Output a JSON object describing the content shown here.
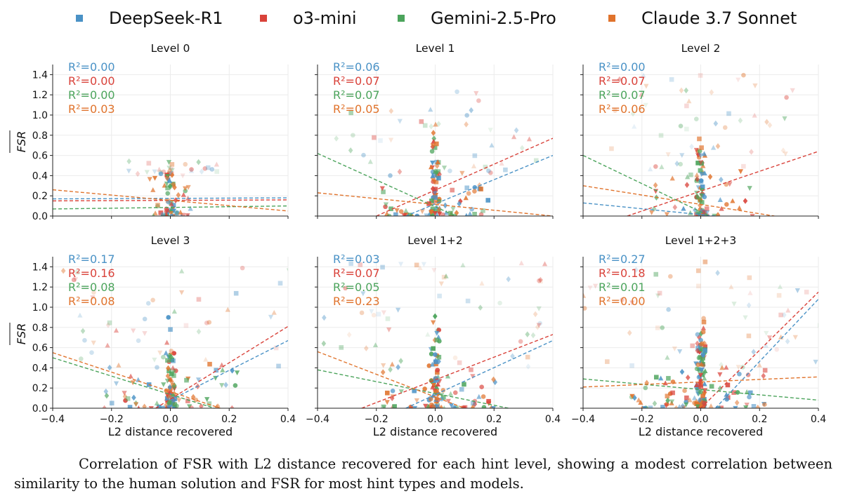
{
  "colors": {
    "DeepSeek-R1": "#4a92c6",
    "o3-mini": "#d9423a",
    "Gemini-2.5-Pro": "#4ca45c",
    "Claude 3.7 Sonnet": "#e0732c"
  },
  "caption": "Correlation of FSR with L2 distance recovered for each hint level, showing a modest correlation between similarity to the human solution and FSR for most hint types and models.",
  "chart_data": {
    "type": "scatter",
    "legend": [
      "DeepSeek-R1",
      "o3-mini",
      "Gemini-2.5-Pro",
      "Claude 3.7 Sonnet"
    ],
    "legend_position": "top",
    "xlabel": "L2 distance recovered",
    "ylabel": "FSR",
    "xlim": [
      -0.4,
      0.4
    ],
    "ylim": [
      0.0,
      1.5
    ],
    "xticks": [
      "−0.4",
      "−0.2",
      "0.0",
      "0.2",
      "0.4"
    ],
    "yticks": [
      "0.0",
      "0.2",
      "0.4",
      "0.6",
      "0.8",
      "1.0",
      "1.2",
      "1.4"
    ],
    "grid": true,
    "panels": [
      {
        "title": "Level 0",
        "r2": [
          {
            "model": "DeepSeek-R1",
            "label": "R²=0.00"
          },
          {
            "model": "o3-mini",
            "label": "R²=0.00"
          },
          {
            "model": "Gemini-2.5-Pro",
            "label": "R²=0.00"
          },
          {
            "model": "Claude 3.7 Sonnet",
            "label": "R²=0.03"
          }
        ],
        "fits": [
          {
            "model": "DeepSeek-R1",
            "x": [
              -0.4,
              0.4
            ],
            "y": [
              0.17,
              0.18
            ]
          },
          {
            "model": "o3-mini",
            "x": [
              -0.4,
              0.4
            ],
            "y": [
              0.15,
              0.16
            ]
          },
          {
            "model": "Gemini-2.5-Pro",
            "x": [
              -0.4,
              0.4
            ],
            "y": [
              0.07,
              0.1
            ]
          },
          {
            "model": "Claude 3.7 Sonnet",
            "x": [
              -0.4,
              0.4
            ],
            "y": [
              0.26,
              0.05
            ]
          }
        ]
      },
      {
        "title": "Level 1",
        "r2": [
          {
            "model": "DeepSeek-R1",
            "label": "R²=0.06"
          },
          {
            "model": "o3-mini",
            "label": "R²=0.07"
          },
          {
            "model": "Gemini-2.5-Pro",
            "label": "R²=0.07"
          },
          {
            "model": "Claude 3.7 Sonnet",
            "label": "R²=0.05"
          }
        ],
        "fits": [
          {
            "model": "DeepSeek-R1",
            "x": [
              -0.1,
              0.4
            ],
            "y": [
              0.0,
              0.6
            ]
          },
          {
            "model": "o3-mini",
            "x": [
              -0.2,
              0.4
            ],
            "y": [
              0.0,
              0.77
            ]
          },
          {
            "model": "Gemini-2.5-Pro",
            "x": [
              -0.4,
              0.07
            ],
            "y": [
              0.62,
              0.0
            ]
          },
          {
            "model": "Claude 3.7 Sonnet",
            "x": [
              -0.4,
              0.4
            ],
            "y": [
              0.23,
              0.0
            ]
          }
        ]
      },
      {
        "title": "Level 2",
        "r2": [
          {
            "model": "DeepSeek-R1",
            "label": "R²=0.00"
          },
          {
            "model": "o3-mini",
            "label": "R²=0.07"
          },
          {
            "model": "Gemini-2.5-Pro",
            "label": "R²=0.07"
          },
          {
            "model": "Claude 3.7 Sonnet",
            "label": "R²=0.06"
          }
        ],
        "fits": [
          {
            "model": "DeepSeek-R1",
            "x": [
              -0.4,
              0.05
            ],
            "y": [
              0.13,
              0.0
            ]
          },
          {
            "model": "o3-mini",
            "x": [
              -0.25,
              0.4
            ],
            "y": [
              0.0,
              0.64
            ]
          },
          {
            "model": "Gemini-2.5-Pro",
            "x": [
              -0.4,
              0.03
            ],
            "y": [
              0.6,
              0.0
            ]
          },
          {
            "model": "Claude 3.7 Sonnet",
            "x": [
              -0.4,
              0.25
            ],
            "y": [
              0.3,
              0.0
            ]
          }
        ]
      },
      {
        "title": "Level 3",
        "r2": [
          {
            "model": "DeepSeek-R1",
            "label": "R²=0.17"
          },
          {
            "model": "o3-mini",
            "label": "R²=0.16"
          },
          {
            "model": "Gemini-2.5-Pro",
            "label": "R²=0.08"
          },
          {
            "model": "Claude 3.7 Sonnet",
            "label": "R²=0.08"
          }
        ],
        "fits": [
          {
            "model": "DeepSeek-R1",
            "x": [
              0.0,
              0.4
            ],
            "y": [
              0.08,
              0.67
            ]
          },
          {
            "model": "o3-mini",
            "x": [
              -0.05,
              0.4
            ],
            "y": [
              0.0,
              0.81
            ]
          },
          {
            "model": "Gemini-2.5-Pro",
            "x": [
              -0.4,
              0.15
            ],
            "y": [
              0.5,
              0.0
            ]
          },
          {
            "model": "Claude 3.7 Sonnet",
            "x": [
              -0.4,
              0.17
            ],
            "y": [
              0.55,
              0.0
            ]
          }
        ]
      },
      {
        "title": "Level 1+2",
        "r2": [
          {
            "model": "DeepSeek-R1",
            "label": "R²=0.03"
          },
          {
            "model": "o3-mini",
            "label": "R²=0.07"
          },
          {
            "model": "Gemini-2.5-Pro",
            "label": "R²=0.05"
          },
          {
            "model": "Claude 3.7 Sonnet",
            "label": "R²=0.23"
          }
        ],
        "fits": [
          {
            "model": "DeepSeek-R1",
            "x": [
              -0.1,
              0.4
            ],
            "y": [
              0.0,
              0.67
            ]
          },
          {
            "model": "o3-mini",
            "x": [
              -0.25,
              0.4
            ],
            "y": [
              0.0,
              0.73
            ]
          },
          {
            "model": "Gemini-2.5-Pro",
            "x": [
              -0.4,
              0.25
            ],
            "y": [
              0.38,
              0.0
            ]
          },
          {
            "model": "Claude 3.7 Sonnet",
            "x": [
              -0.4,
              0.1
            ],
            "y": [
              0.56,
              0.0
            ]
          }
        ]
      },
      {
        "title": "Level 1+2+3",
        "r2": [
          {
            "model": "DeepSeek-R1",
            "label": "R²=0.27"
          },
          {
            "model": "o3-mini",
            "label": "R²=0.18"
          },
          {
            "model": "Gemini-2.5-Pro",
            "label": "R²=0.01"
          },
          {
            "model": "Claude 3.7 Sonnet",
            "label": "R²=0.00"
          }
        ],
        "fits": [
          {
            "model": "DeepSeek-R1",
            "x": [
              0.05,
              0.4
            ],
            "y": [
              0.0,
              1.08
            ]
          },
          {
            "model": "o3-mini",
            "x": [
              0.0,
              0.4
            ],
            "y": [
              0.0,
              1.15
            ]
          },
          {
            "model": "Gemini-2.5-Pro",
            "x": [
              -0.4,
              0.4
            ],
            "y": [
              0.29,
              0.08
            ]
          },
          {
            "model": "Claude 3.7 Sonnet",
            "x": [
              -0.4,
              0.4
            ],
            "y": [
              0.21,
              0.31
            ]
          }
        ]
      }
    ]
  }
}
